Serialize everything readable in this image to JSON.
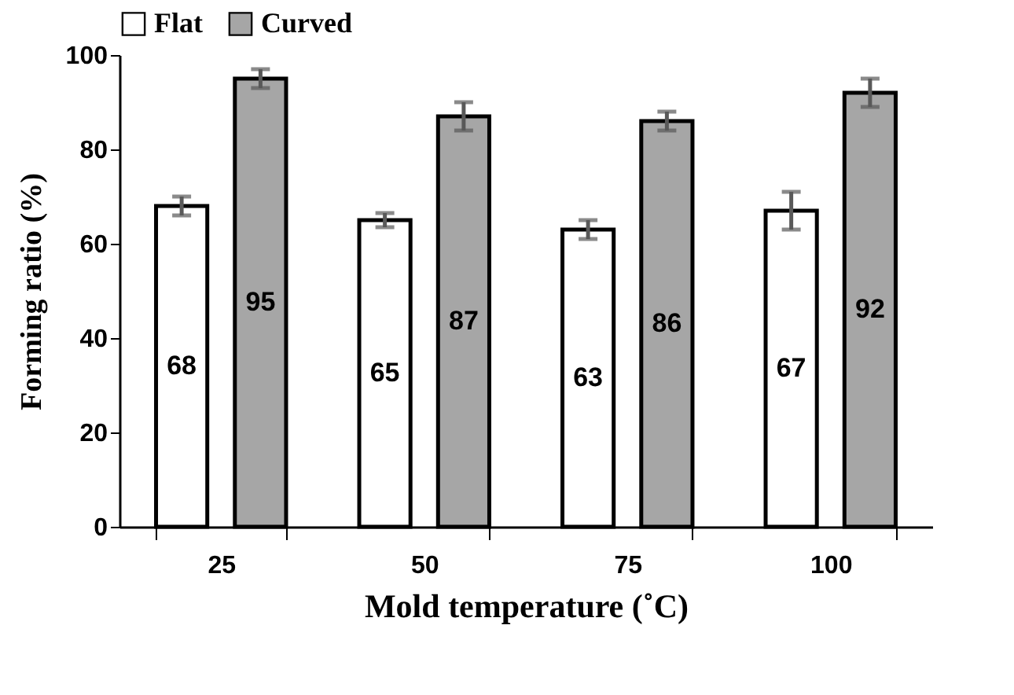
{
  "chart_data": {
    "type": "bar",
    "xlabel": "Mold temperature (˚C)",
    "ylabel": "Forming ratio (%)",
    "categories": [
      "25",
      "50",
      "75",
      "100"
    ],
    "series": [
      {
        "name": "Flat",
        "color": "#ffffff",
        "values": [
          68,
          65,
          63,
          67
        ],
        "errors": [
          2,
          1.5,
          2,
          4
        ]
      },
      {
        "name": "Curved",
        "color": "#a6a6a6",
        "values": [
          95,
          87,
          86,
          92
        ],
        "errors": [
          2,
          3,
          2,
          3
        ]
      }
    ],
    "ylim": [
      0,
      100
    ],
    "yticks": [
      0,
      20,
      40,
      60,
      80,
      100
    ],
    "grid": false,
    "legend": "top",
    "data_labels": true
  }
}
